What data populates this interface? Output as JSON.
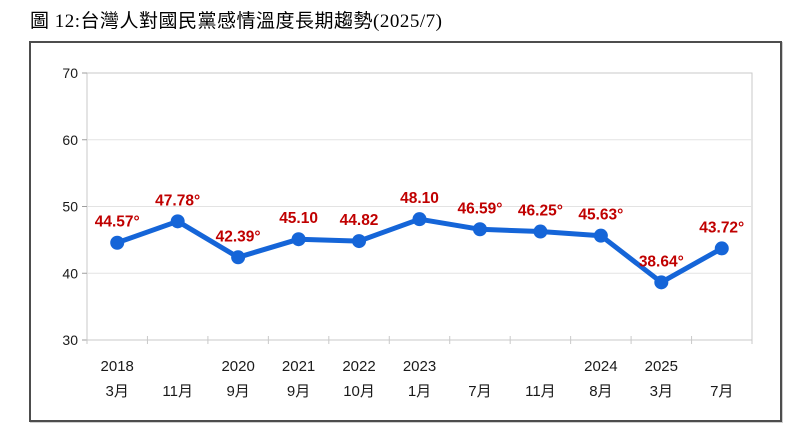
{
  "page": {
    "title": "圖 12:台灣人對國民黨感情溫度長期趨勢(2025/7)"
  },
  "chart_data": {
    "type": "line",
    "title": "圖 12:台灣人對國民黨感情溫度長期趨勢(2025/7)",
    "x_year_labels": [
      "2018",
      "",
      "2020",
      "2021",
      "2022",
      "2023",
      "",
      "",
      "2024",
      "2025",
      ""
    ],
    "x_month_labels": [
      "3月",
      "11月",
      "9月",
      "9月",
      "10月",
      "1月",
      "7月",
      "11月",
      "8月",
      "3月",
      "7月"
    ],
    "values": [
      44.57,
      47.78,
      42.39,
      45.1,
      44.82,
      48.1,
      46.59,
      46.25,
      45.63,
      38.64,
      43.72
    ],
    "point_labels": [
      "44.57°",
      "47.78°",
      "42.39°",
      "45.10",
      "44.82",
      "48.10",
      "46.59°",
      "46.25°",
      "45.63°",
      "38.64°",
      "43.72°"
    ],
    "y_ticks": [
      30,
      40,
      50,
      60,
      70
    ],
    "ylim": [
      30,
      70
    ],
    "grid": true,
    "legend": "none",
    "colors": {
      "line": "#1565d8",
      "marker": "#1565d8",
      "data_label": "#c00000",
      "axis_text": "#1a1a1a",
      "gridline": "#e3e3e3",
      "plot_border": "#c9c9c9"
    }
  }
}
